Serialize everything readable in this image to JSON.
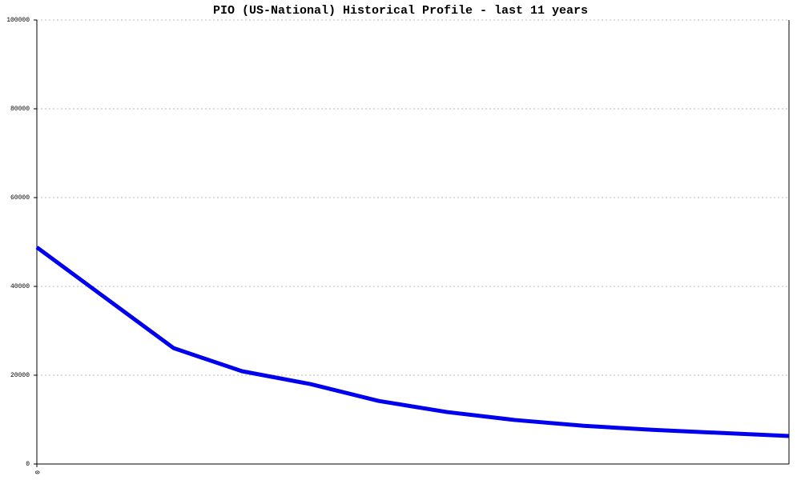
{
  "chart_data": {
    "type": "line",
    "title": "PIO (US-National) Historical Profile - last 11 years",
    "x": [
      0,
      2,
      3,
      4,
      5,
      6,
      7,
      8,
      9,
      10,
      11
    ],
    "series": [
      {
        "color": "#0000ee",
        "values": [
          48800,
          26100,
          20900,
          18000,
          14200,
          11700,
          9900,
          8600,
          7700,
          7000,
          6300
        ]
      }
    ],
    "xlim": [
      0,
      11
    ],
    "xticks": [
      0
    ],
    "ylim": [
      0,
      100000
    ],
    "yticks": [
      0,
      20000,
      40000,
      60000,
      80000,
      100000
    ],
    "grid": true
  }
}
